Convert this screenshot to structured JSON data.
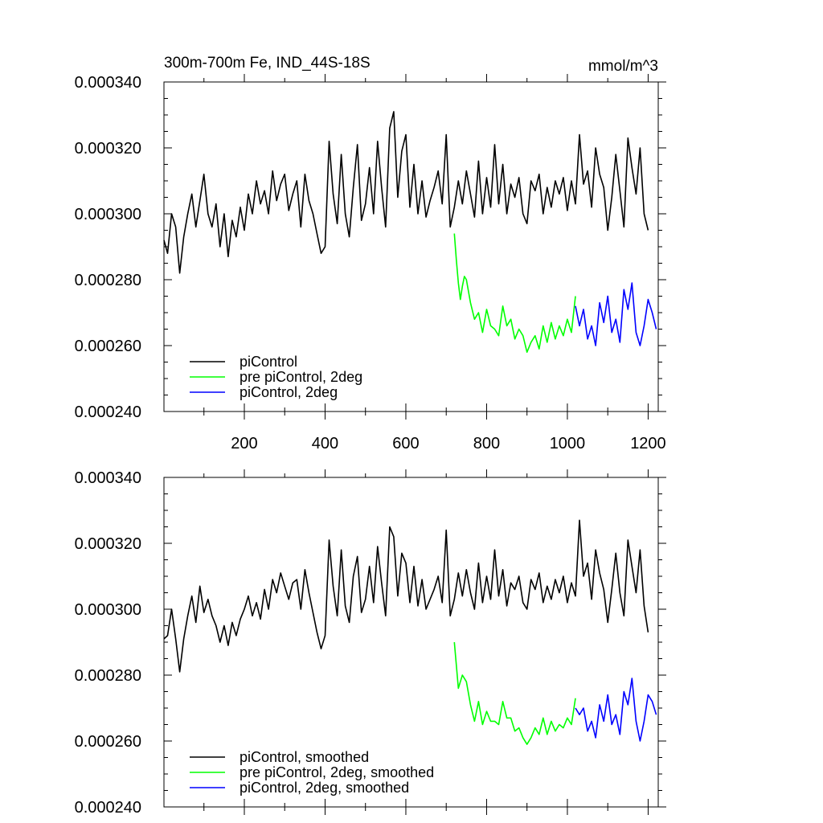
{
  "figure": {
    "title_left": "300m-700m Fe, IND_44S-18S",
    "title_right": "mmol/m^3"
  },
  "chart_data": [
    {
      "type": "line",
      "title": "300m-700m Fe, IND_44S-18S",
      "units": "mmol/m^3",
      "xlim": [
        1,
        1225
      ],
      "ylim": [
        0.00024,
        0.00034
      ],
      "xticks": [
        200,
        400,
        600,
        800,
        1000,
        1200
      ],
      "xtick_labels": [
        "200",
        "400",
        "600",
        "800",
        "1000",
        "1200"
      ],
      "yticks": [
        0.00024,
        0.00026,
        0.00028,
        0.0003,
        0.00032,
        0.00034
      ],
      "ytick_labels": [
        "0.000240",
        "0.000260",
        "0.000280",
        "0.000300",
        "0.000320",
        "0.000340"
      ],
      "legend_position": "bottom-left",
      "series": [
        {
          "name": "piControl",
          "color": "#000000",
          "x": [
            1,
            10,
            20,
            30,
            40,
            50,
            60,
            70,
            80,
            90,
            100,
            110,
            120,
            130,
            140,
            150,
            160,
            170,
            180,
            190,
            200,
            210,
            220,
            230,
            240,
            250,
            260,
            270,
            280,
            290,
            300,
            310,
            320,
            330,
            340,
            350,
            360,
            370,
            380,
            390,
            400,
            410,
            420,
            430,
            440,
            450,
            460,
            470,
            480,
            490,
            500,
            510,
            520,
            530,
            540,
            550,
            560,
            570,
            580,
            590,
            600,
            610,
            620,
            630,
            640,
            650,
            660,
            670,
            680,
            690,
            700,
            710,
            720,
            730,
            740,
            750,
            760,
            770,
            780,
            790,
            800,
            810,
            820,
            830,
            840,
            850,
            860,
            870,
            880,
            890,
            900,
            910,
            920,
            930,
            940,
            950,
            960,
            970,
            980,
            990,
            1000,
            1010,
            1020,
            1030,
            1040,
            1050,
            1060,
            1070,
            1080,
            1090,
            1100,
            1110,
            1120,
            1130,
            1140,
            1150,
            1160,
            1170,
            1180,
            1190,
            1200
          ],
          "y": [
            0.000292,
            0.000288,
            0.0003,
            0.000296,
            0.000282,
            0.000293,
            0.0003,
            0.000306,
            0.000296,
            0.000304,
            0.000312,
            0.0003,
            0.000296,
            0.000303,
            0.00029,
            0.0003,
            0.000287,
            0.000298,
            0.000293,
            0.000302,
            0.000295,
            0.000306,
            0.0003,
            0.00031,
            0.000303,
            0.000307,
            0.0003,
            0.000313,
            0.000304,
            0.000309,
            0.000312,
            0.000301,
            0.000306,
            0.00031,
            0.000296,
            0.000312,
            0.000304,
            0.0003,
            0.000294,
            0.000288,
            0.00029,
            0.000322,
            0.000306,
            0.000297,
            0.000318,
            0.0003,
            0.000293,
            0.000308,
            0.000321,
            0.000298,
            0.000303,
            0.000314,
            0.0003,
            0.000322,
            0.000308,
            0.000296,
            0.000326,
            0.000331,
            0.000305,
            0.000319,
            0.000324,
            0.000302,
            0.000315,
            0.0003,
            0.00031,
            0.000299,
            0.000304,
            0.000308,
            0.000313,
            0.000303,
            0.000324,
            0.000296,
            0.000302,
            0.00031,
            0.000303,
            0.000313,
            0.000306,
            0.000299,
            0.000316,
            0.0003,
            0.000311,
            0.000302,
            0.000321,
            0.000303,
            0.000315,
            0.0003,
            0.000309,
            0.000305,
            0.000311,
            0.0003,
            0.000297,
            0.00031,
            0.000307,
            0.000312,
            0.0003,
            0.000308,
            0.000302,
            0.00031,
            0.000306,
            0.000311,
            0.000301,
            0.00031,
            0.000303,
            0.000324,
            0.000309,
            0.000313,
            0.000302,
            0.00032,
            0.000312,
            0.000308,
            0.000295,
            0.000305,
            0.000318,
            0.000307,
            0.000296,
            0.000323,
            0.000314,
            0.000306,
            0.00032,
            0.0003,
            0.000295
          ]
        },
        {
          "name": "pre piControl, 2deg",
          "color": "#00ff00",
          "x": [
            720,
            725,
            730,
            735,
            740,
            745,
            750,
            760,
            770,
            780,
            790,
            800,
            810,
            820,
            830,
            840,
            850,
            860,
            870,
            880,
            890,
            900,
            910,
            920,
            930,
            940,
            950,
            960,
            970,
            980,
            990,
            1000,
            1010,
            1020
          ],
          "y": [
            0.000294,
            0.000286,
            0.000279,
            0.000274,
            0.000278,
            0.000281,
            0.00028,
            0.000273,
            0.000268,
            0.00027,
            0.000264,
            0.000271,
            0.000266,
            0.000265,
            0.000263,
            0.000272,
            0.000266,
            0.000268,
            0.000262,
            0.000265,
            0.000263,
            0.000258,
            0.000261,
            0.000263,
            0.000259,
            0.000266,
            0.000261,
            0.000267,
            0.000262,
            0.000266,
            0.000263,
            0.000268,
            0.000264,
            0.000275
          ]
        },
        {
          "name": "piControl, 2deg",
          "color": "#0000ff",
          "x": [
            1020,
            1030,
            1040,
            1050,
            1060,
            1070,
            1080,
            1090,
            1100,
            1110,
            1120,
            1130,
            1140,
            1150,
            1160,
            1170,
            1180,
            1190,
            1200,
            1210,
            1220
          ],
          "y": [
            0.000272,
            0.000266,
            0.000271,
            0.000262,
            0.000266,
            0.00026,
            0.000273,
            0.000267,
            0.000275,
            0.000264,
            0.000268,
            0.000261,
            0.000277,
            0.000271,
            0.000279,
            0.000264,
            0.00026,
            0.000266,
            0.000274,
            0.00027,
            0.000265
          ]
        }
      ]
    },
    {
      "type": "line",
      "xlim": [
        1,
        1225
      ],
      "ylim": [
        0.00024,
        0.00034
      ],
      "xticks": [
        200,
        400,
        600,
        800,
        1000,
        1200
      ],
      "yticks": [
        0.00024,
        0.00026,
        0.00028,
        0.0003,
        0.00032,
        0.00034
      ],
      "ytick_labels": [
        "0.000240",
        "0.000260",
        "0.000280",
        "0.000300",
        "0.000320",
        "0.000340"
      ],
      "legend_position": "bottom-left",
      "series": [
        {
          "name": "piControl, smoothed",
          "color": "#000000",
          "x": [
            1,
            10,
            20,
            30,
            40,
            50,
            60,
            70,
            80,
            90,
            100,
            110,
            120,
            130,
            140,
            150,
            160,
            170,
            180,
            190,
            200,
            210,
            220,
            230,
            240,
            250,
            260,
            270,
            280,
            290,
            300,
            310,
            320,
            330,
            340,
            350,
            360,
            370,
            380,
            390,
            400,
            410,
            420,
            430,
            440,
            450,
            460,
            470,
            480,
            490,
            500,
            510,
            520,
            530,
            540,
            550,
            560,
            570,
            580,
            590,
            600,
            610,
            620,
            630,
            640,
            650,
            660,
            670,
            680,
            690,
            700,
            710,
            720,
            730,
            740,
            750,
            760,
            770,
            780,
            790,
            800,
            810,
            820,
            830,
            840,
            850,
            860,
            870,
            880,
            890,
            900,
            910,
            920,
            930,
            940,
            950,
            960,
            970,
            980,
            990,
            1000,
            1010,
            1020,
            1030,
            1040,
            1050,
            1060,
            1070,
            1080,
            1090,
            1100,
            1110,
            1120,
            1130,
            1140,
            1150,
            1160,
            1170,
            1180,
            1190,
            1200
          ],
          "y": [
            0.000291,
            0.000292,
            0.0003,
            0.000291,
            0.000281,
            0.000291,
            0.000298,
            0.000304,
            0.000296,
            0.000307,
            0.000299,
            0.000303,
            0.000298,
            0.000295,
            0.00029,
            0.000295,
            0.000289,
            0.000296,
            0.000292,
            0.000297,
            0.0003,
            0.000304,
            0.000298,
            0.000302,
            0.000297,
            0.000306,
            0.0003,
            0.000309,
            0.000305,
            0.000311,
            0.000307,
            0.000303,
            0.000308,
            0.000309,
            0.0003,
            0.000312,
            0.000305,
            0.000299,
            0.000293,
            0.000288,
            0.000292,
            0.000321,
            0.000307,
            0.000298,
            0.000318,
            0.000301,
            0.000296,
            0.00031,
            0.000316,
            0.000299,
            0.000303,
            0.000313,
            0.000302,
            0.000319,
            0.000308,
            0.000298,
            0.000325,
            0.000322,
            0.000304,
            0.000317,
            0.000314,
            0.000302,
            0.000313,
            0.000301,
            0.000309,
            0.0003,
            0.000303,
            0.000306,
            0.00031,
            0.000302,
            0.000324,
            0.000298,
            0.000303,
            0.000311,
            0.000304,
            0.000312,
            0.000305,
            0.0003,
            0.000314,
            0.000302,
            0.00031,
            0.000303,
            0.000318,
            0.000304,
            0.000312,
            0.000301,
            0.000308,
            0.000306,
            0.00031,
            0.000302,
            0.0003,
            0.000309,
            0.000306,
            0.000311,
            0.000302,
            0.000307,
            0.000303,
            0.000309,
            0.000305,
            0.00031,
            0.000302,
            0.000308,
            0.000304,
            0.000327,
            0.00031,
            0.000314,
            0.000303,
            0.000318,
            0.000311,
            0.000306,
            0.000296,
            0.000306,
            0.000317,
            0.000305,
            0.000298,
            0.000321,
            0.000313,
            0.000305,
            0.000318,
            0.000301,
            0.000293
          ]
        },
        {
          "name": "pre piControl, 2deg, smoothed",
          "color": "#00ff00",
          "x": [
            720,
            725,
            730,
            735,
            740,
            745,
            750,
            760,
            770,
            780,
            790,
            800,
            810,
            820,
            830,
            840,
            850,
            860,
            870,
            880,
            890,
            900,
            910,
            920,
            930,
            940,
            950,
            960,
            970,
            980,
            990,
            1000,
            1010,
            1020
          ],
          "y": [
            0.00029,
            0.000283,
            0.000276,
            0.000278,
            0.00028,
            0.000279,
            0.000278,
            0.000271,
            0.000266,
            0.000272,
            0.000265,
            0.000269,
            0.000266,
            0.000266,
            0.000265,
            0.000272,
            0.000267,
            0.000267,
            0.000263,
            0.000264,
            0.000261,
            0.000259,
            0.000261,
            0.000264,
            0.000262,
            0.000267,
            0.000262,
            0.000266,
            0.000263,
            0.000265,
            0.000264,
            0.000267,
            0.000265,
            0.000273
          ]
        },
        {
          "name": "piControl, 2deg, smoothed",
          "color": "#0000ff",
          "x": [
            1020,
            1030,
            1040,
            1050,
            1060,
            1070,
            1080,
            1090,
            1100,
            1110,
            1120,
            1130,
            1140,
            1150,
            1160,
            1170,
            1180,
            1190,
            1200,
            1210,
            1220
          ],
          "y": [
            0.00027,
            0.000268,
            0.00027,
            0.000263,
            0.000266,
            0.000261,
            0.000271,
            0.000266,
            0.000274,
            0.000265,
            0.000268,
            0.000262,
            0.000275,
            0.000271,
            0.000279,
            0.000266,
            0.00026,
            0.000266,
            0.000274,
            0.000272,
            0.000268
          ]
        }
      ]
    }
  ]
}
